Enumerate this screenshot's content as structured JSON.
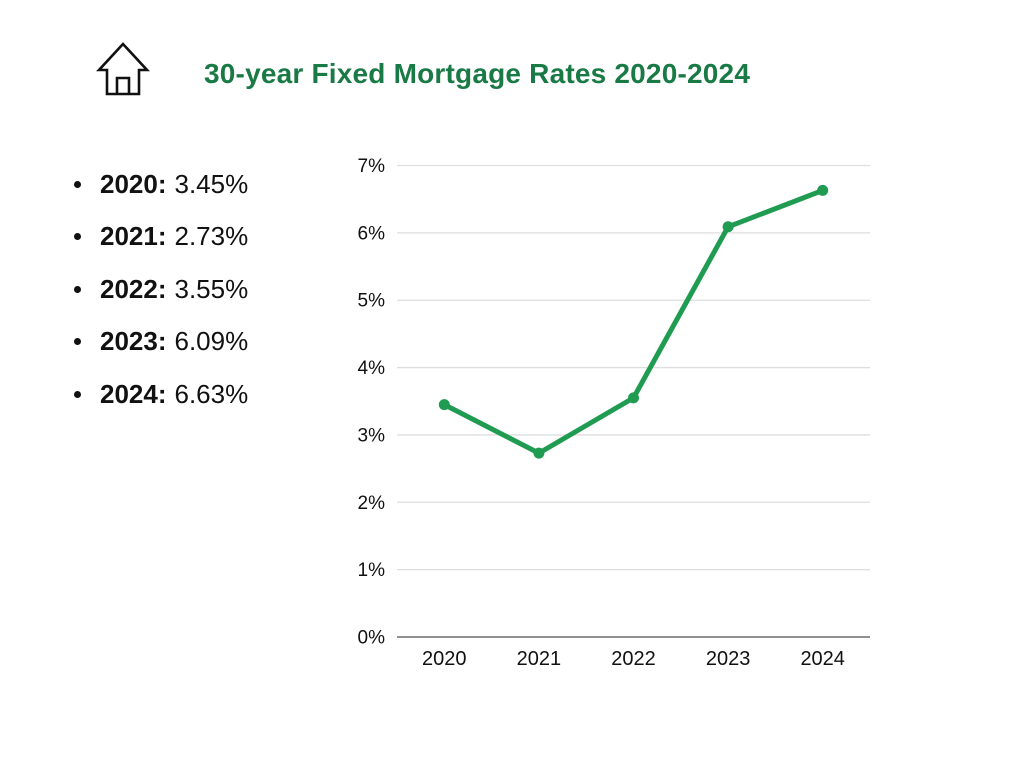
{
  "header": {
    "icon": "home-icon",
    "title": "30-year Fixed Mortgage Rates 2020-2024",
    "title_color": "#1a7a45"
  },
  "rates": {
    "items": [
      {
        "label": "2020:",
        "value": "3.45%"
      },
      {
        "label": "2021:",
        "value": "2.73%"
      },
      {
        "label": "2022:",
        "value": "3.55%"
      },
      {
        "label": "2023:",
        "value": "6.09%"
      },
      {
        "label": "2024:",
        "value": "6.63%"
      }
    ]
  },
  "chart_data": {
    "type": "line",
    "title": "30-year Fixed Mortgage Rates 2020-2024",
    "categories": [
      "2020",
      "2021",
      "2022",
      "2023",
      "2024"
    ],
    "series": [
      {
        "name": "30-year fixed mortgage rate",
        "values": [
          3.45,
          2.73,
          3.55,
          6.09,
          6.63
        ]
      }
    ],
    "xlabel": "",
    "ylabel": "",
    "ylim": [
      0,
      7
    ],
    "ytick_step": 1,
    "ytick_labels": [
      "0%",
      "1%",
      "2%",
      "3%",
      "4%",
      "5%",
      "6%",
      "7%"
    ],
    "grid": true,
    "legend": false,
    "colors": {
      "line": "#1f9b52",
      "marker": "#1f9b52",
      "gridline": "#dedede",
      "axis": "#818181",
      "tick_text": "#111111",
      "icon_stroke": "#111111"
    }
  }
}
